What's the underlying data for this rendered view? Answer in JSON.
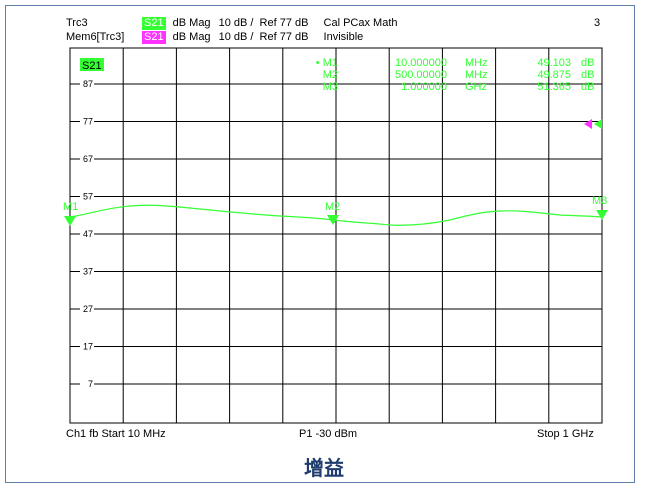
{
  "header": {
    "row1": {
      "trace": "Trc3",
      "param": "S21",
      "format": "dB Mag",
      "scale": "10 dB /",
      "ref": "Ref 77 dB",
      "info": "Cal PCax Math",
      "number": "3"
    },
    "row2": {
      "trace": "Mem6[Trc3]",
      "param": "S21",
      "format": "dB Mag",
      "scale": "10 dB /",
      "ref": "Ref 77 dB",
      "info": "Invisible"
    }
  },
  "plot": {
    "trace_badge": "S21",
    "y_ticks": [
      "87",
      "77",
      "67",
      "57",
      "47",
      "37",
      "27",
      "17",
      "7"
    ],
    "markers_table": [
      {
        "name": "• M1",
        "value": "10.000000",
        "unit": "MHz",
        "result": "49.103",
        "result_unit": "dB"
      },
      {
        "name": "M2",
        "value": "500.00000",
        "unit": "MHz",
        "result": "49.875",
        "result_unit": "dB"
      },
      {
        "name": "M3",
        "value": "1.000000",
        "unit": "GHz",
        "result": "51.365",
        "result_unit": "dB"
      }
    ],
    "marker_labels": [
      "M1",
      "M2",
      "M3"
    ]
  },
  "footer": {
    "channel": "Ch1  fb  Start  10 MHz",
    "power": "P1  -30 dBm",
    "stop": "Stop  1 GHz"
  },
  "caption": "增益",
  "colors": {
    "trace": "#33ff33",
    "memory": "#ff33ff",
    "grid": "#000000",
    "caption": "#1f3c6e"
  }
}
